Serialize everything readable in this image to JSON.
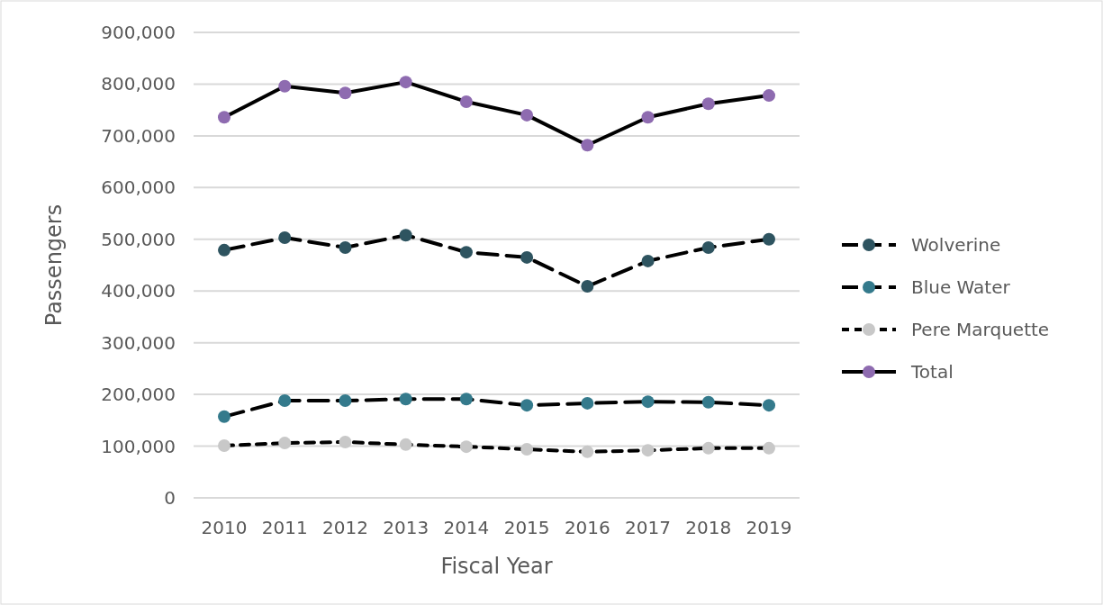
{
  "chart_data": {
    "type": "line",
    "xlabel": "Fiscal Year",
    "ylabel": "Passengers",
    "categories": [
      "2010",
      "2011",
      "2012",
      "2013",
      "2014",
      "2015",
      "2016",
      "2017",
      "2018",
      "2019"
    ],
    "ylim": [
      0,
      900000
    ],
    "yticks": [
      {
        "value": 0,
        "label": "0"
      },
      {
        "value": 100000,
        "label": "100,000"
      },
      {
        "value": 200000,
        "label": "200,000"
      },
      {
        "value": 300000,
        "label": "300,000"
      },
      {
        "value": 400000,
        "label": "400,000"
      },
      {
        "value": 500000,
        "label": "500,000"
      },
      {
        "value": 600000,
        "label": "600,000"
      },
      {
        "value": 700000,
        "label": "700,000"
      },
      {
        "value": 800000,
        "label": "800,000"
      },
      {
        "value": 900000,
        "label": "900,000"
      }
    ],
    "grid": "y",
    "legend": "right",
    "marker": "circle",
    "series": [
      {
        "name": "Wolverine",
        "color": "#2e5460",
        "line_style": "dashed",
        "values": [
          479000,
          503000,
          484000,
          508000,
          475000,
          465000,
          409000,
          458000,
          484000,
          500000
        ]
      },
      {
        "name": "Blue Water",
        "color": "#347a8c",
        "line_style": "dashed",
        "values": [
          157000,
          188000,
          188000,
          191000,
          191000,
          179000,
          183000,
          186000,
          185000,
          179000
        ]
      },
      {
        "name": "Pere Marquette",
        "color": "#c8c8c8",
        "line_style": "dotted",
        "values": [
          101000,
          106000,
          108000,
          103000,
          99000,
          94000,
          89000,
          92000,
          96000,
          96000
        ]
      },
      {
        "name": "Total",
        "color": "#8e6bb0",
        "line_style": "solid",
        "values": [
          736000,
          796000,
          783000,
          804000,
          766000,
          740000,
          682000,
          736000,
          762000,
          778000
        ]
      }
    ]
  }
}
